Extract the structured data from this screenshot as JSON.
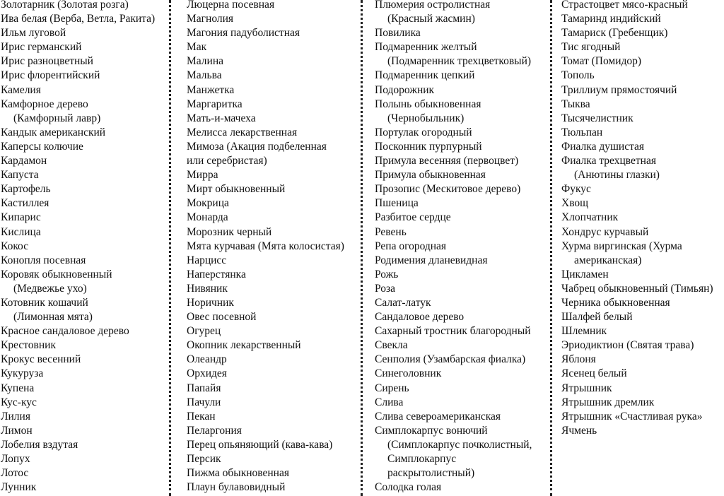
{
  "columns": [
    [
      [
        "Золотарник (Золотая розга)"
      ],
      [
        "Ива белая (Верба, Ветла, Ракита)"
      ],
      [
        "Ильм луговой"
      ],
      [
        "Ирис германский"
      ],
      [
        "Ирис разноцветный"
      ],
      [
        "Ирис флорентийский"
      ],
      [
        "Камелия"
      ],
      [
        "Камфорное дерево",
        "(Камфорный лавр)"
      ],
      [
        "Кандык американский"
      ],
      [
        "Каперсы колючие"
      ],
      [
        "Кардамон"
      ],
      [
        "Капуста"
      ],
      [
        "Картофель"
      ],
      [
        "Кастиллея"
      ],
      [
        "Кипарис"
      ],
      [
        "Кислица"
      ],
      [
        "Кокос"
      ],
      [
        "Конопля посевная"
      ],
      [
        "Коровяк обыкновенный",
        "(Медвежье ухо)"
      ],
      [
        "Котовник кошачий",
        "(Лимонная мята)"
      ],
      [
        "Красное сандаловое дерево"
      ],
      [
        "Крестовник"
      ],
      [
        "Крокус весенний"
      ],
      [
        "Кукуруза"
      ],
      [
        "Купена"
      ],
      [
        "Кус-кус"
      ],
      [
        "Лилия"
      ],
      [
        "Лимон"
      ],
      [
        "Лобелия вздутая"
      ],
      [
        "Лопух"
      ],
      [
        "Лотос"
      ],
      [
        "Лунник"
      ]
    ],
    [
      [
        "Люцерна посевная"
      ],
      [
        "Магнолия"
      ],
      [
        "Магония падуболистная"
      ],
      [
        "Мак"
      ],
      [
        "Малина"
      ],
      [
        "Мальва"
      ],
      [
        "Манжетка"
      ],
      [
        "Маргаритка"
      ],
      [
        "Мать-и-мачеха"
      ],
      [
        "Мелисса лекарственная"
      ],
      [
        "Мимоза (Акация подбеленная",
        "или серебристая)"
      ],
      [
        "Мирра"
      ],
      [
        "Мирт обыкновенный"
      ],
      [
        "Мокрица"
      ],
      [
        "Монарда"
      ],
      [
        "Морозник черный"
      ],
      [
        "Мята курчавая (Мята колосистая)"
      ],
      [
        "Нарцисс"
      ],
      [
        "Наперстянка"
      ],
      [
        "Нивяник"
      ],
      [
        "Норичник"
      ],
      [
        "Овес посевной"
      ],
      [
        "Огурец"
      ],
      [
        "Окопник лекарственный"
      ],
      [
        "Олеандр"
      ],
      [
        "Орхидея"
      ],
      [
        "Папайя"
      ],
      [
        "Пачули"
      ],
      [
        "Пекан"
      ],
      [
        "Пеларгония"
      ],
      [
        "Перец опьяняющий (кава-кава)"
      ],
      [
        "Персик"
      ],
      [
        "Пижма обыкновенная"
      ],
      [
        "Плаун булавовидный"
      ]
    ],
    [
      [
        "Плюмерия остролистная",
        "(Красный жасмин)"
      ],
      [
        "Повилика"
      ],
      [
        "Подмаренник желтый",
        "(Подмаренник трехцветковый)"
      ],
      [
        "Подмаренник цепкий"
      ],
      [
        "Подорожник"
      ],
      [
        "Полынь обыкновенная",
        "(Чернобыльник)"
      ],
      [
        "Портулак огородный"
      ],
      [
        "Посконник пурпурный"
      ],
      [
        "Примула весенняя (первоцвет)"
      ],
      [
        "Примула обыкновенная"
      ],
      [
        "Прозопис (Мескитовое дерево)"
      ],
      [
        "Пшеница"
      ],
      [
        "Разбитое сердце"
      ],
      [
        "Ревень"
      ],
      [
        "Репа огородная"
      ],
      [
        "Родимения дланевидная"
      ],
      [
        "Рожь"
      ],
      [
        "Роза"
      ],
      [
        "Салат-латук"
      ],
      [
        "Сандаловое дерево"
      ],
      [
        "Сахарный тростник благородный"
      ],
      [
        "Свекла"
      ],
      [
        "Сенполия (Узамбарская фиалка)"
      ],
      [
        "Синеголовник"
      ],
      [
        "Сирень"
      ],
      [
        "Слива"
      ],
      [
        "Слива североамериканская"
      ],
      [
        "Симплокарпус вонючий",
        "(Симплокарпус почколистный,",
        "Симплокарпус",
        "раскрытолистный)"
      ],
      [
        "Солодка голая"
      ]
    ],
    [
      [
        "Страстоцвет мясо-красный"
      ],
      [
        "Тамаринд индийский"
      ],
      [
        "Тамариск (Гребенщик)"
      ],
      [
        "Тис ягодный"
      ],
      [
        "Томат (Помидор)"
      ],
      [
        "Тополь"
      ],
      [
        "Триллиум прямостоячий"
      ],
      [
        "Тыква"
      ],
      [
        "Тысячелистник"
      ],
      [
        "Тюльпан"
      ],
      [
        "Фиалка душистая"
      ],
      [
        "Фиалка трехцветная",
        "(Анютины глазки)"
      ],
      [
        "Фукус"
      ],
      [
        "Хвощ"
      ],
      [
        "Хлопчатник"
      ],
      [
        "Хондрус курчавый"
      ],
      [
        "Хурма виргинская (Хурма",
        "американская)"
      ],
      [
        "Цикламен"
      ],
      [
        "Чабрец обыкновенный (Тимьян)"
      ],
      [
        "Черника обыкновенная"
      ],
      [
        "Шалфей белый"
      ],
      [
        "Шлемник"
      ],
      [
        "Эриодиктион (Святая трава)"
      ],
      [
        "Яблоня"
      ],
      [
        "Ясенец белый"
      ],
      [
        "Ятрышник"
      ],
      [
        "Ятрышник дремлик"
      ],
      [
        "Ятрышник «Счастливая рука»"
      ],
      [
        "Ячмень"
      ]
    ]
  ]
}
